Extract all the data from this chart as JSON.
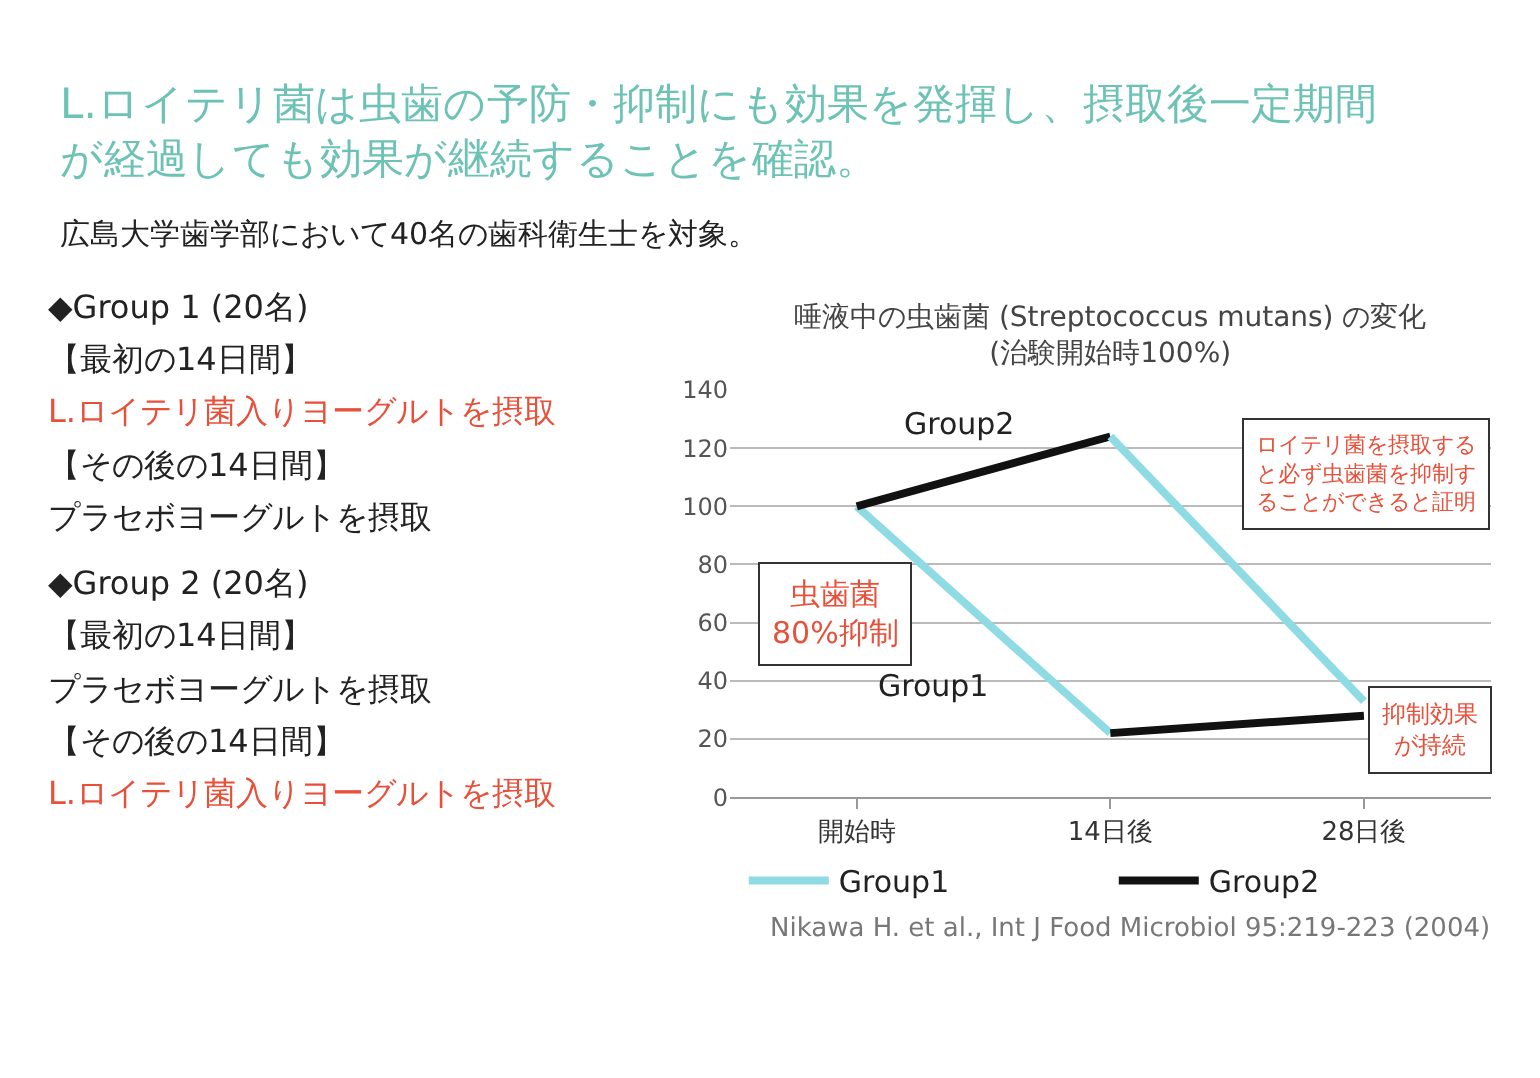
{
  "chart_data": {
    "type": "line",
    "title": "唾液中の虫歯菌 (Streptococcus mutans) の変化\n(治験開始時100%)",
    "categories": [
      "開始時",
      "14日後",
      "28日後"
    ],
    "series": [
      {
        "name": "Group1",
        "color": "#8fdbe3",
        "values": [
          100,
          22,
          null
        ]
      },
      {
        "color": "#111111",
        "values": [
          null,
          22,
          28
        ]
      },
      {
        "name": "Group2",
        "color": "#111111",
        "values": [
          100,
          124,
          null
        ]
      },
      {
        "color": "#8fdbe3",
        "values": [
          null,
          124,
          33
        ]
      }
    ],
    "ylim": [
      0,
      140
    ],
    "yticks": [
      0,
      20,
      40,
      60,
      80,
      100,
      120,
      140
    ],
    "grid": "y",
    "legend": "bottom",
    "annotations": [
      "L.ロイテリ菌は虫歯の予防・抑制にも効果を発揮し、摂取後一定期間が経過しても効果が継続することを確認。",
      "広島大学歯学部において40名の歯科衛生士を対象。",
      "◆Group 1 (20名)",
      "【最初の14日間】",
      "L.ロイテリ菌入りヨーグルトを摂取",
      "【その後の14日間】",
      "プラセボヨーグルトを摂取",
      "◆Group 2 (20名)",
      "【最初の14日間】",
      "プラセボヨーグルトを摂取",
      "【その後の14日間】",
      "L.ロイテリ菌入りヨーグルトを摂取",
      "ロイテリ菌を摂取すると必ず虫歯菌を抑制することができると証明",
      "虫歯菌80%抑制",
      "抑制効果が持続",
      "Group2",
      "Group1",
      "Nikawa H. et al., Int J Food Microbiol 95:219-223 (2004)"
    ]
  }
}
